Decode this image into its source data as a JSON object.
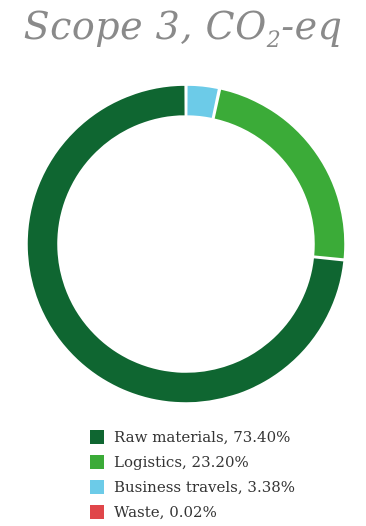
{
  "chart_data": {
    "type": "pie",
    "title": "Scope 3, CO",
    "title_subscript": "2",
    "title_suffix": "-eq",
    "donut": true,
    "legend_position": "bottom",
    "categories": [
      "Raw materials",
      "Logistics",
      "Business travels",
      "Waste"
    ],
    "values": [
      73.4,
      23.2,
      3.38,
      0.02
    ],
    "colors": [
      "#0f6631",
      "#3bab38",
      "#6ccbe8",
      "#e0464a"
    ],
    "legend_labels": [
      "Raw materials, 73.40%",
      "Logistics, 23.20%",
      "Business travels, 3.38%",
      "Waste, 0.02%"
    ]
  }
}
